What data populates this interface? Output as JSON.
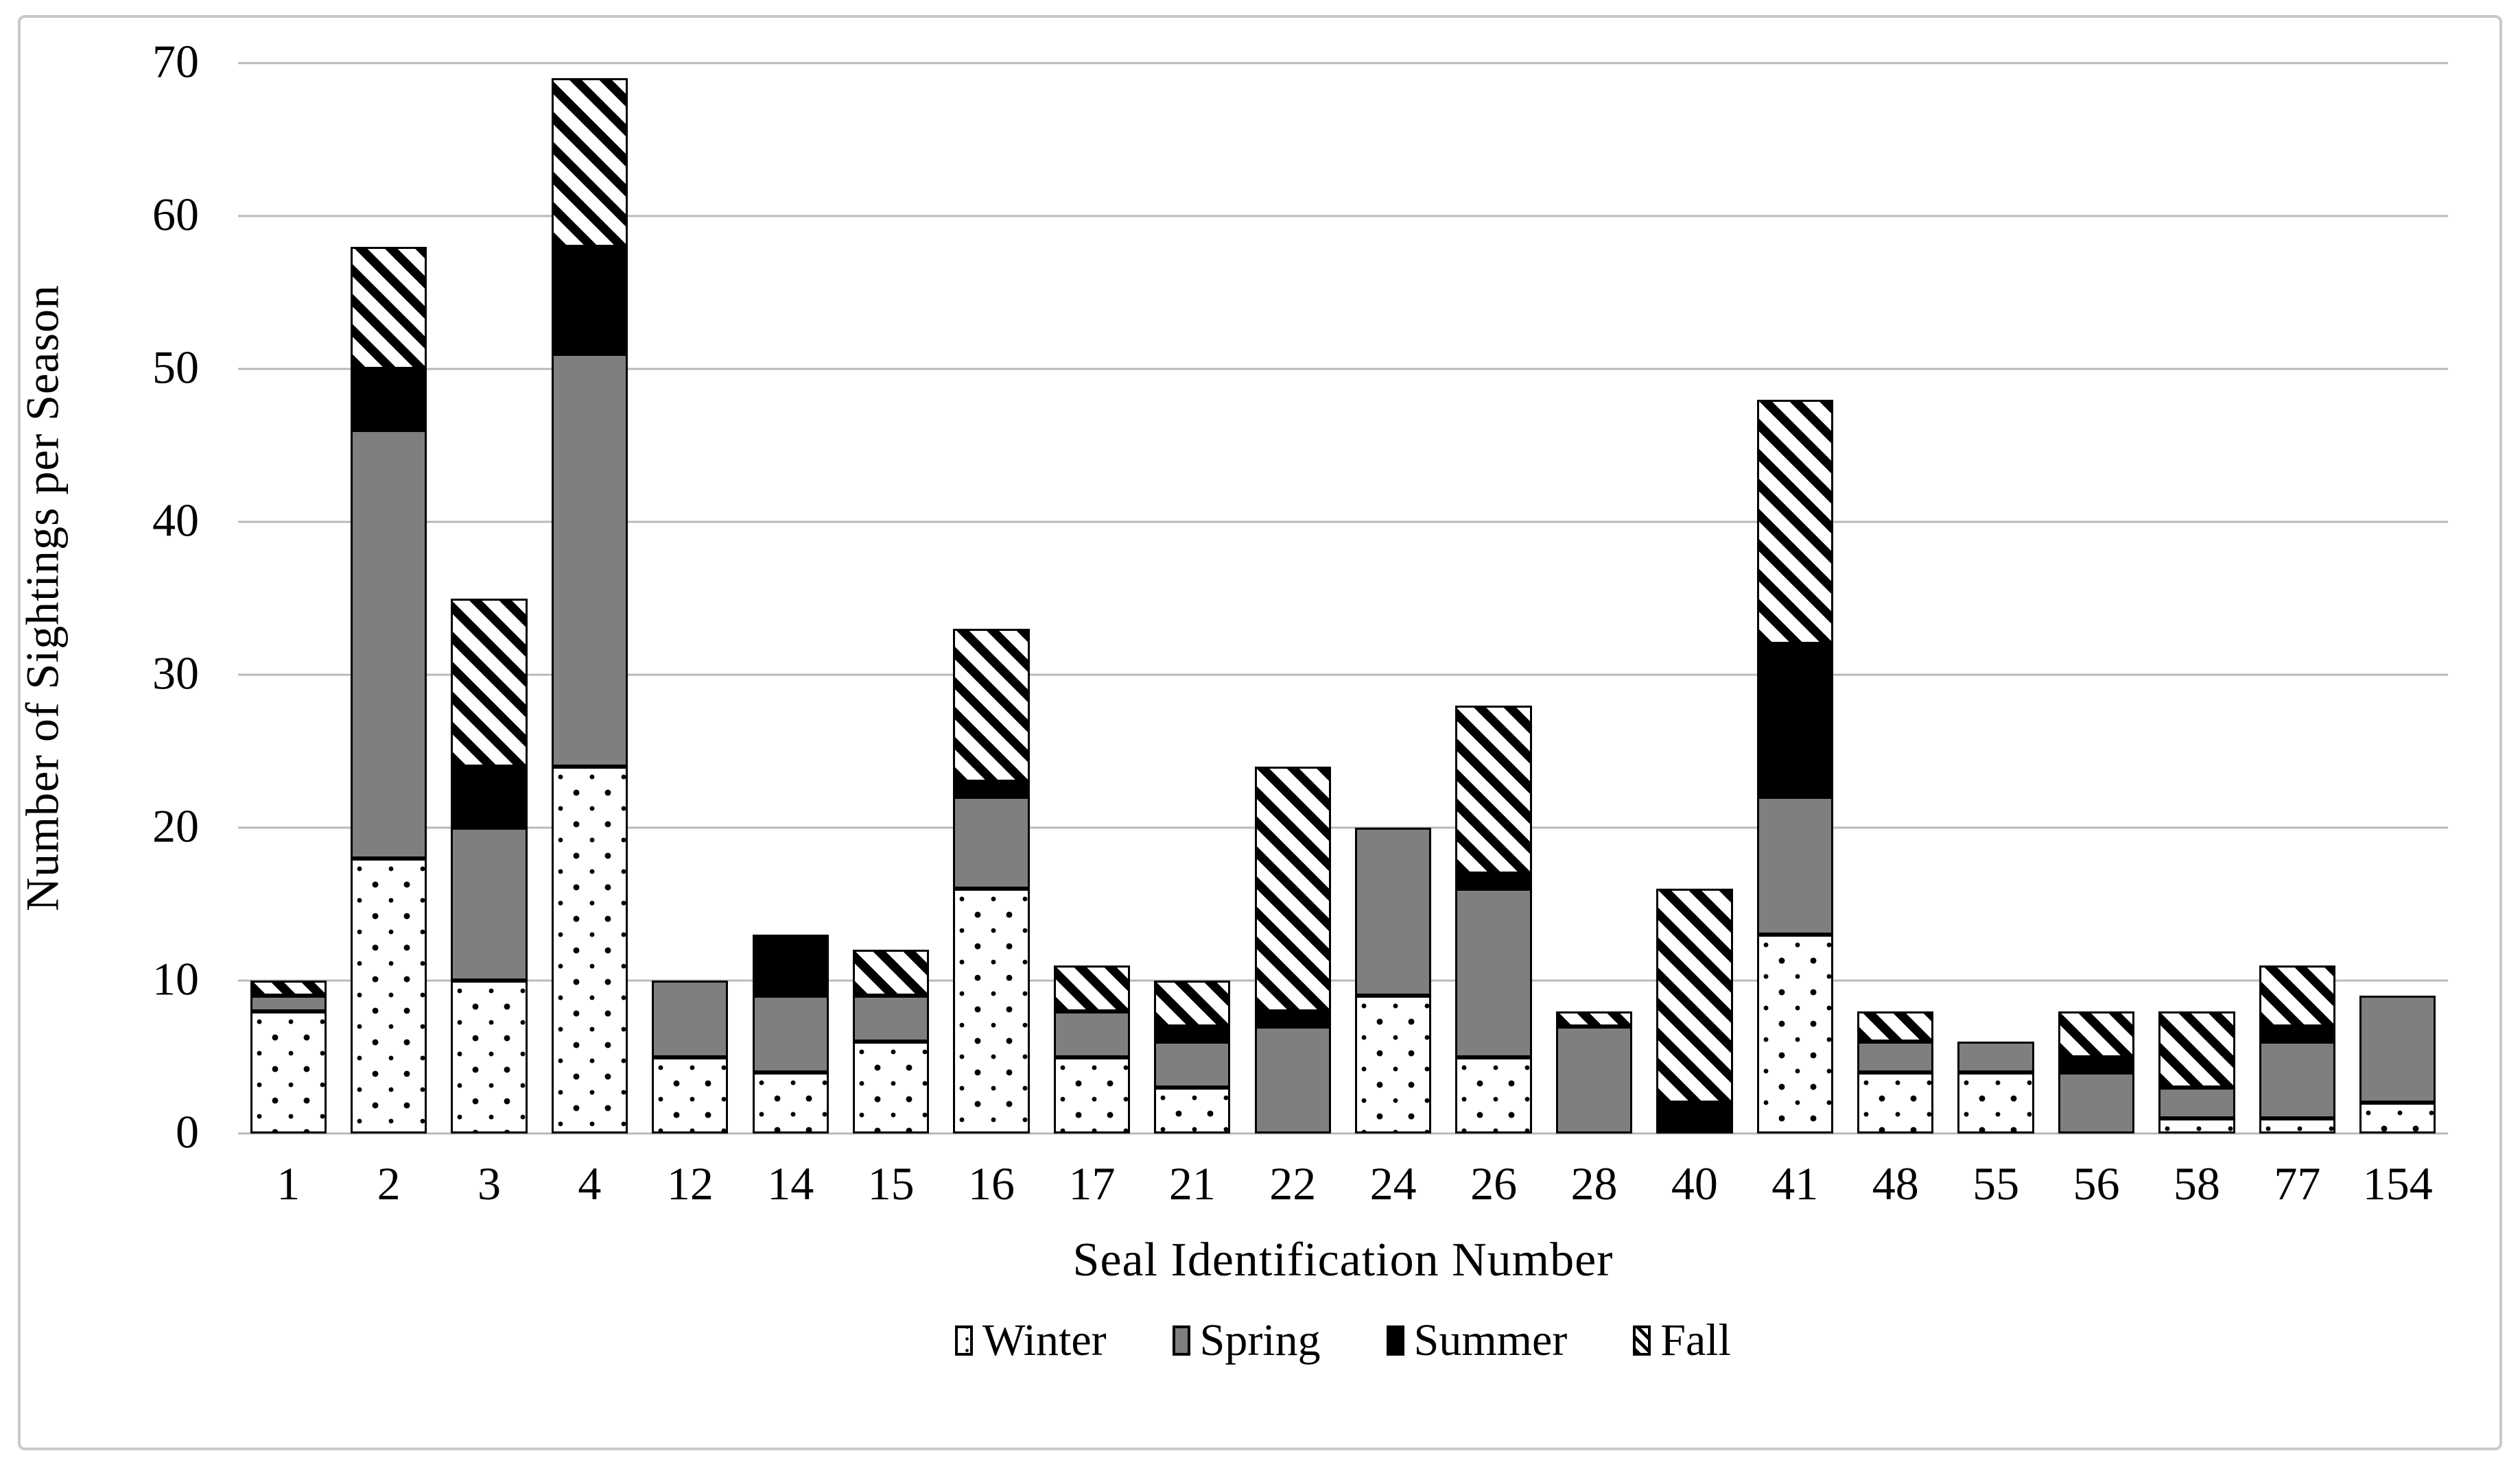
{
  "figure": {
    "frame_border_color": "#c9c9c9",
    "background_color": "#ffffff",
    "gridline_color": "#b9b9b9",
    "text_color": "#000000"
  },
  "chart_data": {
    "type": "bar",
    "stacked": true,
    "title": "",
    "xlabel": "Seal Identification Number",
    "ylabel": "Number of Sightings per Season",
    "ylim": [
      0,
      70
    ],
    "yticks": [
      0,
      10,
      20,
      30,
      40,
      50,
      60,
      70
    ],
    "grid": true,
    "legend_position": "bottom",
    "categories": [
      "1",
      "2",
      "3",
      "4",
      "12",
      "14",
      "15",
      "16",
      "17",
      "21",
      "22",
      "24",
      "26",
      "28",
      "40",
      "41",
      "48",
      "55",
      "56",
      "58",
      "77",
      "154"
    ],
    "series": [
      {
        "name": "Winter",
        "pattern": "dots",
        "fill": "white with black dots",
        "values": [
          8,
          18,
          10,
          24,
          5,
          4,
          6,
          16,
          5,
          3,
          0,
          9,
          5,
          0,
          0,
          13,
          4,
          4,
          0,
          1,
          1,
          2
        ]
      },
      {
        "name": "Spring",
        "pattern": "gray",
        "fill": "#7f7f7f",
        "values": [
          1,
          28,
          10,
          27,
          5,
          5,
          3,
          6,
          3,
          3,
          7,
          11,
          11,
          7,
          0,
          9,
          2,
          2,
          4,
          2,
          5,
          7
        ]
      },
      {
        "name": "Summer",
        "pattern": "black",
        "fill": "#000000",
        "values": [
          0,
          4,
          4,
          7,
          0,
          4,
          0,
          1,
          0,
          1,
          1,
          0,
          1,
          0,
          2,
          10,
          0,
          0,
          1,
          0,
          1,
          0
        ]
      },
      {
        "name": "Fall",
        "pattern": "stripes",
        "fill": "white with black diagonal stripes",
        "values": [
          1,
          8,
          11,
          11,
          0,
          0,
          3,
          10,
          3,
          3,
          16,
          0,
          11,
          1,
          14,
          16,
          2,
          0,
          3,
          5,
          4,
          0
        ]
      }
    ]
  }
}
